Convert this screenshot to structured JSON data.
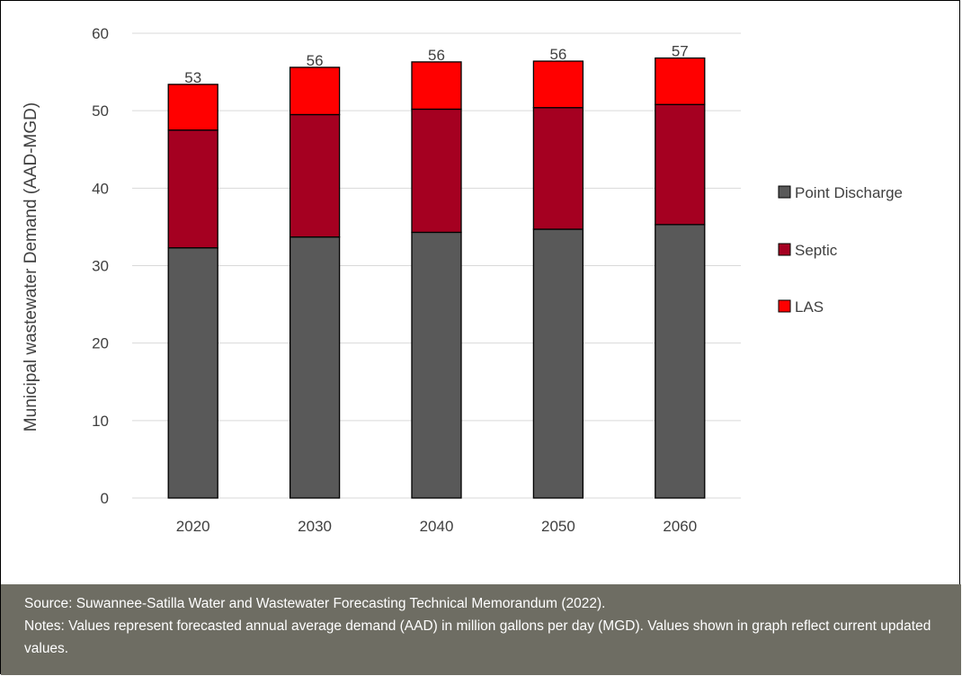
{
  "chart_data": {
    "type": "bar",
    "stacked": true,
    "categories": [
      "2020",
      "2030",
      "2040",
      "2050",
      "2060"
    ],
    "series": [
      {
        "name": "Point Discharge",
        "values": [
          32.3,
          33.7,
          34.3,
          34.7,
          35.3
        ],
        "color": "#595959"
      },
      {
        "name": "Septic",
        "values": [
          15.2,
          15.8,
          15.9,
          15.7,
          15.5
        ],
        "color": "#a50021"
      },
      {
        "name": "LAS",
        "values": [
          5.9,
          6.1,
          6.1,
          6.0,
          6.0
        ],
        "color": "#ff0000"
      }
    ],
    "totals": [
      "53",
      "56",
      "56",
      "56",
      "57"
    ],
    "ylabel": "Municipal wastewater Demand (AAD-MGD)",
    "xlabel": "",
    "ylim": [
      0,
      60
    ],
    "yticks": [
      0,
      10,
      20,
      30,
      40,
      50,
      60
    ],
    "grid": true,
    "legend_position": "right"
  },
  "footer": {
    "source": "Source: Suwannee-Satilla Water and Wastewater Forecasting Technical Memorandum (2022).",
    "notes": "Notes: Values represent forecasted annual average demand (AAD) in million gallons per day (MGD). Values shown in graph reflect current updated values."
  }
}
